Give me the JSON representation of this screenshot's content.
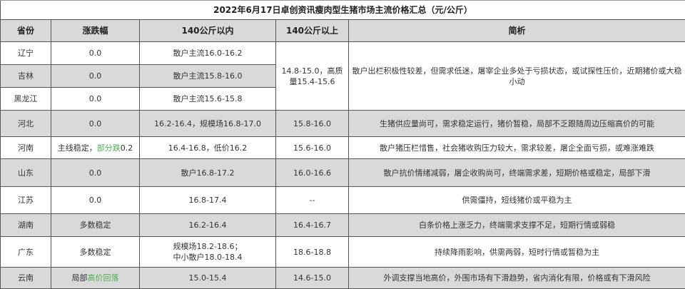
{
  "title": "2022年6月17日卓创资讯瘦肉型生猪市场主流价格汇总（元/公斤）",
  "headers": [
    "省份",
    "涨跌幅",
    "140公斤以内",
    "140公斤以上",
    "简析"
  ],
  "accent_green": "#4caf50",
  "rows": [
    {
      "province": "辽宁",
      "change": "0.0",
      "under140": "散户主流16.0-16.2",
      "over140": "14.8-15.0，高质量15.4-15.6",
      "analysis": "散户出栏积极性较差，但需求低迷，屠宰企业多处于亏损状态，或试探性压价，近期猪价或大稳小动"
    },
    {
      "province": "吉林",
      "change": "0.0",
      "under140": "散户主流15.8-16.0"
    },
    {
      "province": "黑龙江",
      "change": "0.0",
      "under140": "散户主流15.6-15.8"
    },
    {
      "province": "河北",
      "change": "0.0",
      "under140": "16.2-16.4，规模场16.8-17.0",
      "over140": "15.8-16.0",
      "analysis": "生猪供应量尚可，需求稳定运行，猪价暂稳，局部不乏跟随周边压缩高价的可能"
    },
    {
      "province": "河南",
      "change_prefix": "主线稳定，",
      "change_highlight": "部分跌",
      "change_suffix": "0.2",
      "under140": "16.4-16.8，低价16.2",
      "over140": "15.6-16.0",
      "analysis": "散户猪压栏惜售，社会猪收购压力较大，需求较差，屠企全面亏损，或难涨难跌"
    },
    {
      "province": "山东",
      "change": "0.0",
      "under140": "散户16.8-17.2",
      "over140": "16.0-16.6",
      "analysis": "散户抗价情绪减弱，屠企收购尚可，终端需求差，短期价格或稳定，局部下滑"
    },
    {
      "province": "江苏",
      "change": "0.0",
      "under140": "16.8-17.4",
      "over140": "--",
      "analysis": "供需僵持，短线猪价或平稳为主"
    },
    {
      "province": "湖南",
      "change": "多数稳定",
      "under140": "16.2-16.4",
      "over140": "16.4-16.7",
      "analysis": "白条价格上涨乏力，终端需求支撑不足，短期行情或弱稳"
    },
    {
      "province": "广东",
      "change": "多数稳定",
      "under140_line1": "规模场18.2-18.6；",
      "under140_line2": "中小散户18.0-18.4",
      "over140": "18.6-18.8",
      "analysis": "持续降雨影响，供需两弱，短时行情或暂稳为主"
    },
    {
      "province": "云南",
      "change_prefix": "局部",
      "change_highlight": "高价回落",
      "under140": "15.0-15.4",
      "over140": "14.6-15.0",
      "analysis": "外调支撑当地高价，外围市场有下滑趋势，省内消化有限，价格或有下滑风险"
    }
  ]
}
